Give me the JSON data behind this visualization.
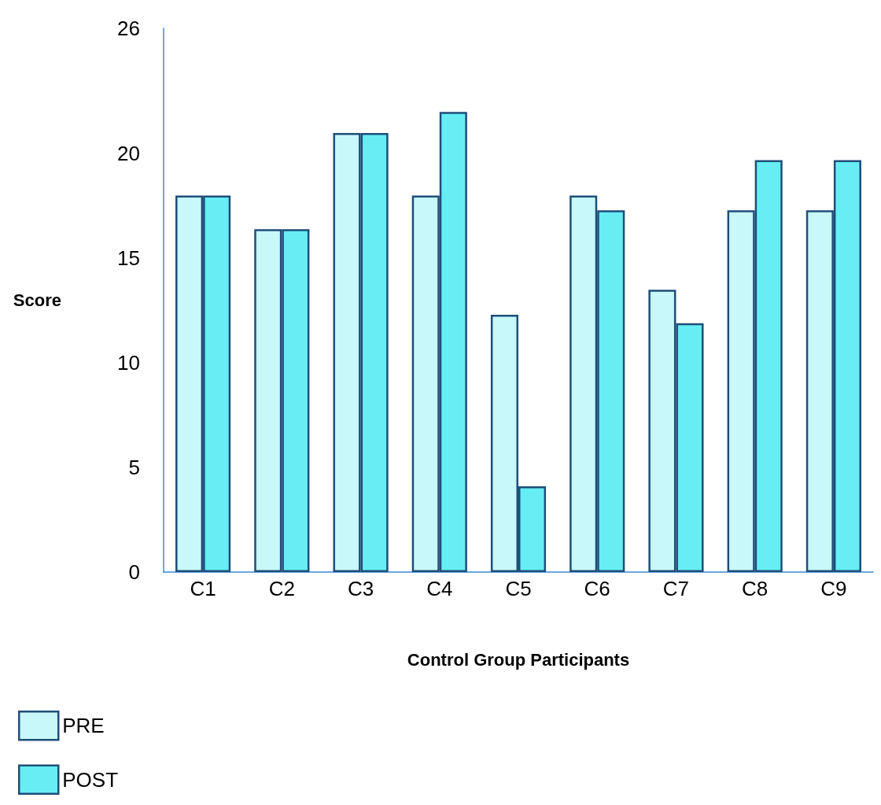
{
  "chart_data": {
    "type": "bar",
    "xlabel": "Control Group Participants",
    "ylabel": "Score",
    "categories": [
      "C1",
      "C2",
      "C3",
      "C4",
      "C5",
      "C6",
      "C7",
      "C8",
      "C9"
    ],
    "series": [
      {
        "name": "PRE",
        "color": "#c8f8fa",
        "values": [
          18,
          16.4,
          21,
          18,
          12.3,
          18,
          13.5,
          17.3,
          17.3
        ]
      },
      {
        "name": "POST",
        "color": "#66eef4",
        "values": [
          18,
          16.4,
          21,
          22,
          4.1,
          17.3,
          11.9,
          19.7,
          19.7
        ]
      }
    ],
    "ylim": [
      0,
      26
    ],
    "yticks": [
      0,
      5,
      10,
      15,
      20,
      26
    ],
    "grid": false,
    "legend": "bottom left"
  }
}
